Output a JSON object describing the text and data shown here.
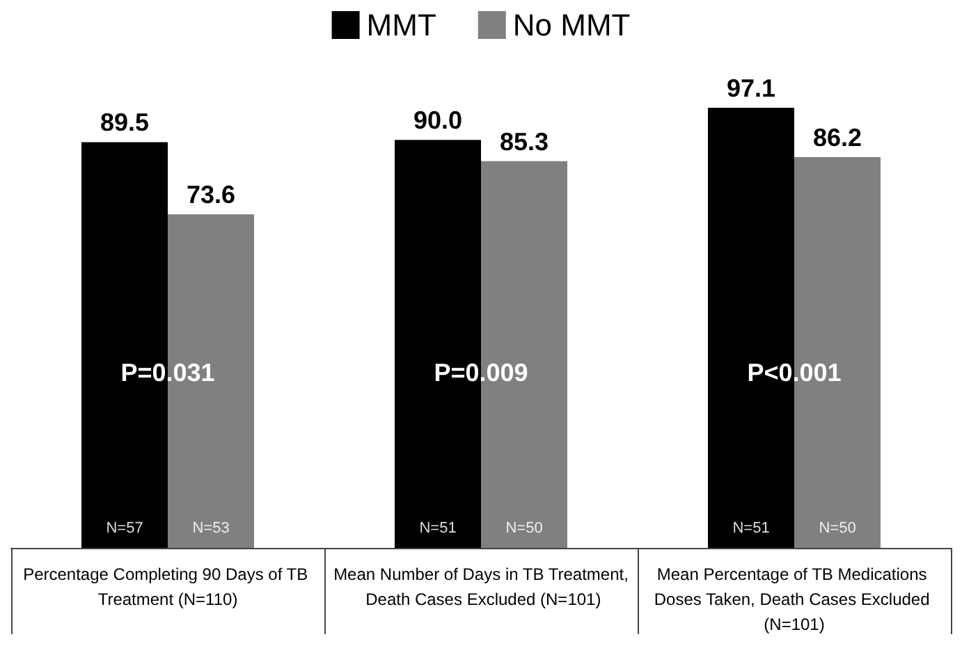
{
  "chart_data": {
    "type": "bar",
    "categories": [
      "Percentage Completing 90 Days of TB Treatment (N=110)",
      "Mean Number of Days in TB Treatment, Death Cases Excluded (N=101)",
      "Mean Percentage of TB Medications Doses Taken, Death Cases Excluded (N=101)"
    ],
    "series": [
      {
        "name": "MMT",
        "color": "#000000",
        "values": [
          89.5,
          90.0,
          97.1
        ],
        "value_labels": [
          "89.5",
          "90.0",
          "97.1"
        ]
      },
      {
        "name": "No MMT",
        "color": "#808080",
        "values": [
          73.6,
          85.3,
          86.2
        ],
        "value_labels": [
          "73.6",
          "85.3",
          "86.2"
        ]
      }
    ],
    "annotations": [
      {
        "text": "P=0.031",
        "x": "Percentage Completing 90 Days of TB Treatment (N=110)"
      },
      {
        "text": "P=0.009",
        "x": "Mean Number of Days in TB Treatment, Death Cases Excluded (N=101)"
      },
      {
        "text": "P<0.001",
        "x": "Mean Percentage of TB Medications Doses Taken, Death Cases Excluded (N=101)"
      },
      "N=57",
      "N=53",
      "N=51",
      "N=50",
      "N=51",
      "N=50"
    ],
    "legend": "top",
    "grid": false
  }
}
